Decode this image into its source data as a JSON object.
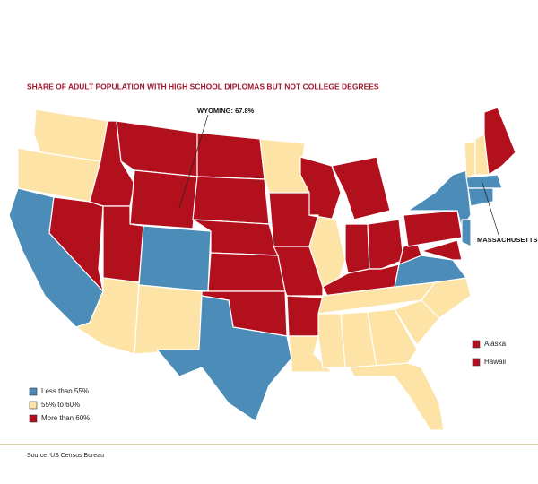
{
  "header": {
    "title": "SHARE OF ADULT POPULATION WITH HIGH SCHOOL DIPLOMAS BUT NOT COLLEGE DEGREES"
  },
  "annotations": [
    {
      "text": "WYOMING: 67.8%"
    },
    {
      "text": "MASSACHUSETTS:"
    }
  ],
  "legend": [
    {
      "label": "Less than 55%",
      "color": "#4b8cb8"
    },
    {
      "label": "55% to 60%",
      "color": "#fde3a6"
    },
    {
      "label": "More than 60%",
      "color": "#b3101d"
    }
  ],
  "insets": [
    {
      "label": "Alaska",
      "color": "#b3101d"
    },
    {
      "label": "Hawaii",
      "color": "#b3101d"
    }
  ],
  "footer": {
    "source": "Source: US Census Bureau"
  }
}
